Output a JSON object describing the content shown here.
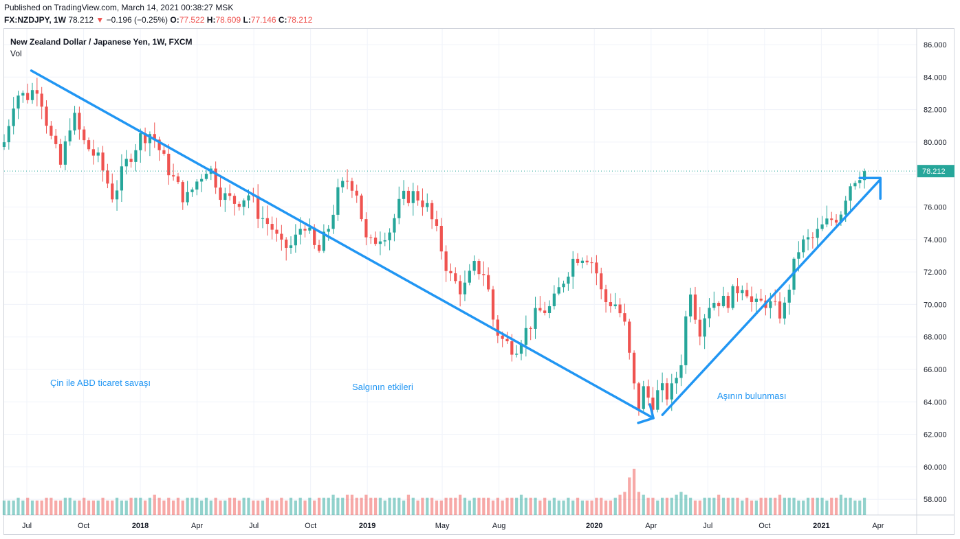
{
  "header": {
    "published": "Published on TradingView.com, March 14, 2021 00:38:27 MSK",
    "symbol": "FX:NZDJPY, 1W",
    "last": "78.212",
    "arrow": "▼",
    "change": "−0.196 (−0.25%)",
    "o_label": "O:",
    "o_value": "77.522",
    "h_label": "H:",
    "h_value": "78.609",
    "l_label": "L:",
    "l_value": "77.146",
    "c_label": "C:",
    "c_value": "78.212"
  },
  "legend": {
    "title": "New Zealand Dollar / Japanese Yen, 1W, FXCM",
    "volume": "Vol"
  },
  "colors": {
    "up": "#26a69a",
    "down": "#ef5350",
    "drawing": "#2196f3",
    "grid": "#f0f3fa"
  },
  "chart_data": {
    "type": "candlestick",
    "title": "New Zealand Dollar / Japanese Yen, 1W, FXCM",
    "xlabel": "",
    "ylabel": "",
    "ylim": [
      57,
      87
    ],
    "y_ticks": [
      "86.000",
      "84.000",
      "82.000",
      "80.000",
      "78.000",
      "76.000",
      "74.000",
      "72.000",
      "70.000",
      "68.000",
      "66.000",
      "64.000",
      "62.000",
      "60.000",
      "58.000"
    ],
    "x_ticks": [
      {
        "label": "Jul",
        "t": 2017.5,
        "bold": false
      },
      {
        "label": "Oct",
        "t": 2017.75,
        "bold": false
      },
      {
        "label": "2018",
        "t": 2018.0,
        "bold": true
      },
      {
        "label": "Apr",
        "t": 2018.25,
        "bold": false
      },
      {
        "label": "Jul",
        "t": 2018.5,
        "bold": false
      },
      {
        "label": "Oct",
        "t": 2018.75,
        "bold": false
      },
      {
        "label": "2019",
        "t": 2019.0,
        "bold": true
      },
      {
        "label": "May",
        "t": 2019.33,
        "bold": false
      },
      {
        "label": "Aug",
        "t": 2019.58,
        "bold": false
      },
      {
        "label": "2020",
        "t": 2020.0,
        "bold": true
      },
      {
        "label": "Apr",
        "t": 2020.25,
        "bold": false
      },
      {
        "label": "Jul",
        "t": 2020.5,
        "bold": false
      },
      {
        "label": "Oct",
        "t": 2020.75,
        "bold": false
      },
      {
        "label": "2021",
        "t": 2021.0,
        "bold": true
      },
      {
        "label": "Apr",
        "t": 2021.25,
        "bold": false
      }
    ],
    "last_price": "78.212",
    "close_path": [
      {
        "t": 2017.4,
        "v": 80.0
      },
      {
        "t": 2017.45,
        "v": 83.0
      },
      {
        "t": 2017.5,
        "v": 82.8
      },
      {
        "t": 2017.55,
        "v": 83.5
      },
      {
        "t": 2017.6,
        "v": 80.5
      },
      {
        "t": 2017.65,
        "v": 78.5
      },
      {
        "t": 2017.7,
        "v": 81.8
      },
      {
        "t": 2017.75,
        "v": 80.0
      },
      {
        "t": 2017.82,
        "v": 78.8
      },
      {
        "t": 2017.88,
        "v": 76.6
      },
      {
        "t": 2017.93,
        "v": 78.5
      },
      {
        "t": 2018.0,
        "v": 80.3
      },
      {
        "t": 2018.05,
        "v": 80.6
      },
      {
        "t": 2018.1,
        "v": 79.0
      },
      {
        "t": 2018.15,
        "v": 77.6
      },
      {
        "t": 2018.2,
        "v": 76.4
      },
      {
        "t": 2018.25,
        "v": 77.6
      },
      {
        "t": 2018.3,
        "v": 78.6
      },
      {
        "t": 2018.36,
        "v": 76.7
      },
      {
        "t": 2018.42,
        "v": 76.3
      },
      {
        "t": 2018.48,
        "v": 76.8
      },
      {
        "t": 2018.52,
        "v": 75.6
      },
      {
        "t": 2018.58,
        "v": 74.7
      },
      {
        "t": 2018.62,
        "v": 73.5
      },
      {
        "t": 2018.67,
        "v": 73.6
      },
      {
        "t": 2018.72,
        "v": 75.2
      },
      {
        "t": 2018.78,
        "v": 73.0
      },
      {
        "t": 2018.83,
        "v": 74.8
      },
      {
        "t": 2018.87,
        "v": 76.8
      },
      {
        "t": 2018.91,
        "v": 77.7
      },
      {
        "t": 2018.95,
        "v": 77.2
      },
      {
        "t": 2019.0,
        "v": 73.5
      },
      {
        "t": 2019.05,
        "v": 74.2
      },
      {
        "t": 2019.1,
        "v": 74.6
      },
      {
        "t": 2019.15,
        "v": 76.5
      },
      {
        "t": 2019.21,
        "v": 76.8
      },
      {
        "t": 2019.26,
        "v": 76.1
      },
      {
        "t": 2019.31,
        "v": 74.2
      },
      {
        "t": 2019.36,
        "v": 71.8
      },
      {
        "t": 2019.42,
        "v": 70.8
      },
      {
        "t": 2019.47,
        "v": 72.3
      },
      {
        "t": 2019.52,
        "v": 71.9
      },
      {
        "t": 2019.56,
        "v": 68.6
      },
      {
        "t": 2019.6,
        "v": 67.7
      },
      {
        "t": 2019.65,
        "v": 67.3
      },
      {
        "t": 2019.7,
        "v": 68.4
      },
      {
        "t": 2019.75,
        "v": 69.5
      },
      {
        "t": 2019.81,
        "v": 69.8
      },
      {
        "t": 2019.86,
        "v": 71.4
      },
      {
        "t": 2019.91,
        "v": 72.9
      },
      {
        "t": 2019.96,
        "v": 73.1
      },
      {
        "t": 2020.0,
        "v": 72.5
      },
      {
        "t": 2020.04,
        "v": 70.2
      },
      {
        "t": 2020.09,
        "v": 70.1
      },
      {
        "t": 2020.13,
        "v": 69.0
      },
      {
        "t": 2020.16,
        "v": 66.3
      },
      {
        "t": 2020.19,
        "v": 63.5
      },
      {
        "t": 2020.22,
        "v": 64.9
      },
      {
        "t": 2020.25,
        "v": 63.8
      },
      {
        "t": 2020.29,
        "v": 64.8
      },
      {
        "t": 2020.33,
        "v": 64.3
      },
      {
        "t": 2020.38,
        "v": 66.3
      },
      {
        "t": 2020.42,
        "v": 71.3
      },
      {
        "t": 2020.46,
        "v": 68.3
      },
      {
        "t": 2020.5,
        "v": 70.0
      },
      {
        "t": 2020.54,
        "v": 70.3
      },
      {
        "t": 2020.58,
        "v": 70.1
      },
      {
        "t": 2020.62,
        "v": 70.8
      },
      {
        "t": 2020.66,
        "v": 71.4
      },
      {
        "t": 2020.7,
        "v": 69.8
      },
      {
        "t": 2020.75,
        "v": 70.2
      },
      {
        "t": 2020.79,
        "v": 69.8
      },
      {
        "t": 2020.83,
        "v": 69.3
      },
      {
        "t": 2020.87,
        "v": 71.9
      },
      {
        "t": 2020.9,
        "v": 73.4
      },
      {
        "t": 2020.93,
        "v": 73.9
      },
      {
        "t": 2020.96,
        "v": 74.0
      },
      {
        "t": 2021.0,
        "v": 74.7
      },
      {
        "t": 2021.04,
        "v": 75.2
      },
      {
        "t": 2021.08,
        "v": 75.5
      },
      {
        "t": 2021.12,
        "v": 77.3
      },
      {
        "t": 2021.16,
        "v": 78.0
      },
      {
        "t": 2021.19,
        "v": 78.212
      }
    ],
    "volume_level": [
      5,
      5,
      5,
      6,
      5,
      6,
      5,
      5,
      5,
      6,
      6,
      5,
      5,
      6,
      6,
      5,
      5,
      6,
      5,
      5,
      5,
      6,
      5,
      5,
      6,
      5,
      5,
      6,
      6,
      6,
      5,
      6,
      7,
      6,
      5,
      6,
      5,
      6,
      5,
      6,
      6,
      6,
      5,
      6,
      5,
      6,
      5,
      5,
      6,
      6,
      5,
      6,
      6,
      5,
      5,
      5,
      6,
      5,
      5,
      6,
      5,
      6,
      5,
      6,
      5,
      6,
      5,
      6,
      6,
      6,
      7,
      6,
      6,
      7,
      7,
      6,
      6,
      7,
      6,
      6,
      6,
      5,
      6,
      6,
      6,
      5,
      7,
      6,
      5,
      6,
      6,
      6,
      5,
      5,
      6,
      6,
      6,
      7,
      6,
      5,
      6,
      6,
      6,
      6,
      5,
      6,
      5,
      6,
      6,
      6,
      7,
      6,
      6,
      6,
      5,
      6,
      5,
      6,
      5,
      5,
      6,
      5,
      6,
      5,
      5,
      5,
      6,
      6,
      5,
      5,
      6,
      7,
      8,
      13,
      16,
      8,
      7,
      6,
      6,
      5,
      6,
      6,
      6,
      7,
      8,
      7,
      6,
      5,
      5,
      6,
      6,
      6,
      7,
      6,
      6,
      6,
      6,
      5,
      6,
      5,
      5,
      6,
      6,
      6,
      6,
      7,
      6,
      6,
      6,
      5,
      5,
      6,
      6,
      6,
      6,
      5,
      6,
      6,
      7,
      6,
      6,
      5,
      5,
      6
    ]
  },
  "annotations": {
    "trade_war": "Çin ile ABD ticaret savaşı",
    "pandemic": "Salgının etkileri",
    "vaccine": "Aşının bulunması"
  }
}
